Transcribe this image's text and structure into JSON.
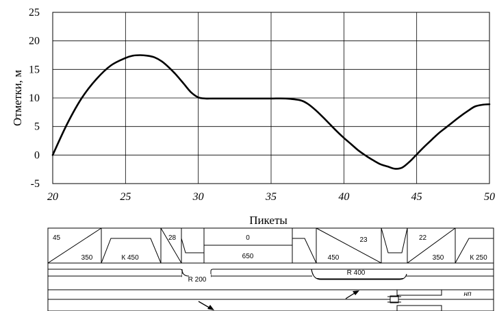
{
  "chart_data": {
    "type": "line",
    "title": "",
    "xlabel": "Пикеты",
    "ylabel": "Отметки, м",
    "xlim": [
      20,
      50
    ],
    "ylim": [
      -5,
      25
    ],
    "grid": true,
    "x_ticks": [
      "20",
      "25",
      "30",
      "35",
      "40",
      "45",
      "50"
    ],
    "y_ticks": [
      "25",
      "20",
      "15",
      "10",
      "5",
      "0",
      "-5"
    ],
    "series": [
      {
        "color": "#000000",
        "x": [
          20.0,
          21.0,
          22.0,
          23.0,
          24.0,
          25.0,
          25.5,
          26.0,
          26.5,
          27.0,
          27.5,
          28.0,
          28.5,
          29.0,
          29.5,
          30.0,
          30.5,
          31.0,
          32.0,
          33.0,
          34.0,
          35.0,
          36.0,
          37.0,
          37.5,
          38.0,
          38.5,
          39.0,
          39.5,
          40.0,
          40.5,
          41.0,
          41.5,
          42.0,
          42.5,
          43.0,
          43.5,
          44.0,
          44.5,
          45.0,
          45.5,
          46.0,
          46.5,
          47.0,
          47.5,
          48.0,
          48.5,
          49.0,
          49.5,
          50.0
        ],
        "y": [
          0.0,
          5.5,
          10.0,
          13.3,
          15.7,
          17.0,
          17.4,
          17.5,
          17.4,
          17.1,
          16.4,
          15.3,
          14.0,
          12.5,
          11.0,
          10.1,
          9.9,
          9.9,
          9.9,
          9.9,
          9.9,
          9.9,
          9.9,
          9.6,
          9.0,
          8.0,
          6.8,
          5.5,
          4.2,
          3.0,
          1.9,
          0.8,
          -0.1,
          -0.9,
          -1.6,
          -2.0,
          -2.4,
          -2.2,
          -1.2,
          0.1,
          1.4,
          2.6,
          3.8,
          4.8,
          5.8,
          6.8,
          7.7,
          8.5,
          8.8,
          8.9
        ]
      }
    ]
  },
  "profile_table": {
    "row1": [
      {
        "top": "45",
        "bottom": "350"
      },
      {
        "top": "",
        "bottom": "К 450"
      },
      {
        "top": "28",
        "bottom": ""
      },
      {
        "top": "0",
        "bottom": "650"
      },
      {
        "top": "",
        "bottom": ""
      },
      {
        "top": "23",
        "bottom": "450"
      },
      {
        "top": "",
        "bottom": ""
      },
      {
        "top": "22",
        "bottom": "350"
      },
      {
        "top": "",
        "bottom": "К 250"
      }
    ],
    "curves": [
      "R 200",
      "R 400"
    ],
    "note": "нп"
  }
}
